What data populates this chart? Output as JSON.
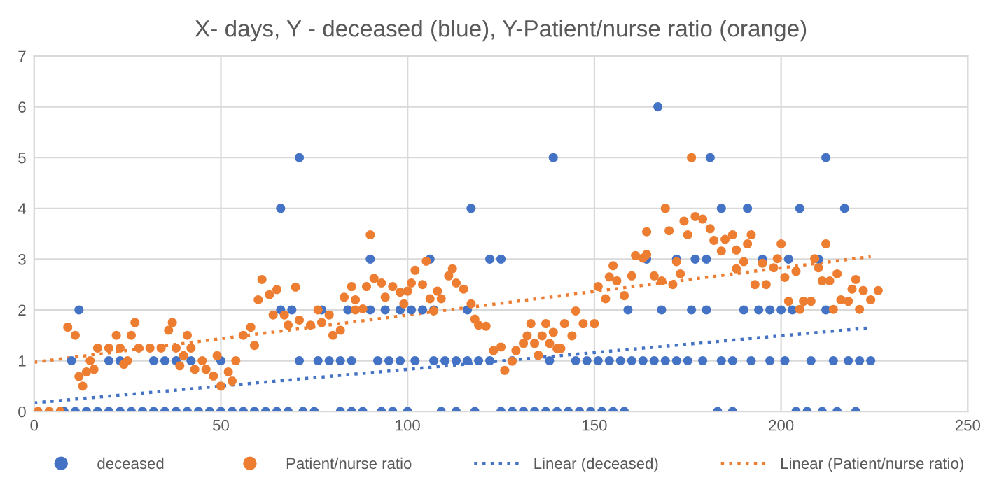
{
  "chart_data": {
    "type": "scatter",
    "title": "X- days, Y - deceased (blue), Y-Patient/nurse ratio (orange)",
    "xlim": [
      0,
      250
    ],
    "xticks": [
      0,
      50,
      100,
      150,
      200,
      250
    ],
    "ylim": [
      0,
      7
    ],
    "yticks": [
      0,
      1,
      2,
      3,
      4,
      5,
      6,
      7
    ],
    "grid": true,
    "legend": "bottom",
    "marker": "circle",
    "series": [
      {
        "name": "deceased",
        "color": "#4472c4",
        "x": [
          8,
          11,
          14,
          17,
          20,
          23,
          26,
          29,
          32,
          35,
          38,
          41,
          44,
          47,
          50,
          53,
          56,
          59,
          62,
          65,
          68,
          72,
          75,
          82,
          85,
          88,
          93,
          96,
          100,
          109,
          113,
          118,
          125,
          128,
          131,
          134,
          137,
          140,
          143,
          146,
          149,
          152,
          155,
          158,
          183,
          187,
          204,
          207,
          211,
          215,
          220,
          10,
          20,
          23,
          32,
          35,
          38,
          42,
          50,
          71,
          76,
          79,
          82,
          85,
          92,
          95,
          98,
          102,
          107,
          110,
          113,
          116,
          119,
          122,
          128,
          138,
          145,
          148,
          151,
          154,
          157,
          160,
          163,
          166,
          169,
          172,
          175,
          179,
          184,
          187,
          192,
          197,
          201,
          208,
          214,
          218,
          221,
          224,
          12,
          66,
          69,
          77,
          84,
          90,
          94,
          98,
          101,
          104,
          107,
          116,
          159,
          168,
          176,
          180,
          190,
          194,
          197,
          200,
          203,
          212,
          90,
          106,
          122,
          125,
          164,
          172,
          177,
          180,
          195,
          202,
          210,
          66,
          117,
          184,
          191,
          205,
          217,
          71,
          139,
          181,
          212,
          167
        ],
        "values": [
          0,
          0,
          0,
          0,
          0,
          0,
          0,
          0,
          0,
          0,
          0,
          0,
          0,
          0,
          0,
          0,
          0,
          0,
          0,
          0,
          0,
          0,
          0,
          0,
          0,
          0,
          0,
          0,
          0,
          0,
          0,
          0,
          0,
          0,
          0,
          0,
          0,
          0,
          0,
          0,
          0,
          0,
          0,
          0,
          0,
          0,
          0,
          0,
          0,
          0,
          0,
          1,
          1,
          1,
          1,
          1,
          1,
          1,
          1,
          1,
          1,
          1,
          1,
          1,
          1,
          1,
          1,
          1,
          1,
          1,
          1,
          1,
          1,
          1,
          1,
          1,
          1,
          1,
          1,
          1,
          1,
          1,
          1,
          1,
          1,
          1,
          1,
          1,
          1,
          1,
          1,
          1,
          1,
          1,
          1,
          1,
          1,
          1,
          2,
          2,
          2,
          2,
          2,
          2,
          2,
          2,
          2,
          2,
          2,
          2,
          2,
          2,
          2,
          2,
          2,
          2,
          2,
          2,
          2,
          2,
          3,
          3,
          3,
          3,
          3,
          3,
          3,
          3,
          3,
          3,
          3,
          4,
          4,
          4,
          4,
          4,
          4,
          5,
          5,
          5,
          5,
          6
        ]
      },
      {
        "name": "Patient/nurse ratio",
        "color": "#ed7d31",
        "x": [
          1,
          4,
          7,
          9,
          11,
          12,
          13,
          14,
          15,
          16,
          17,
          20,
          22,
          23,
          24,
          25,
          26,
          27,
          28,
          31,
          34,
          36,
          37,
          38,
          39,
          40,
          41,
          42,
          43,
          45,
          46,
          48,
          49,
          50,
          52,
          53,
          54,
          56,
          58,
          59,
          60,
          61,
          63,
          64,
          65,
          67,
          68,
          70,
          71,
          74,
          76,
          77,
          79,
          80,
          82,
          83,
          85,
          86,
          86,
          88,
          89,
          90,
          91,
          93,
          94,
          96,
          98,
          99,
          100,
          101,
          102,
          104,
          105,
          106,
          107,
          108,
          109,
          111,
          112,
          113,
          115,
          117,
          118,
          119,
          121,
          123,
          125,
          126,
          128,
          129,
          131,
          132,
          133,
          134,
          135,
          136,
          137,
          138,
          139,
          140,
          141,
          142,
          144,
          145,
          147,
          150,
          151,
          153,
          154,
          155,
          156,
          158,
          160,
          161,
          163,
          164,
          164,
          166,
          168,
          169,
          170,
          171,
          172,
          173,
          174,
          175,
          176,
          177,
          179,
          181,
          182,
          184,
          185,
          187,
          188,
          188,
          190,
          191,
          192,
          193,
          195,
          196,
          198,
          199,
          200,
          201,
          202,
          204,
          205,
          206,
          208,
          209,
          210,
          211,
          212,
          213,
          214,
          215,
          216,
          218,
          219,
          220,
          221,
          222,
          224,
          226
        ],
        "values": [
          0,
          0,
          0,
          1.66,
          1.5,
          0.69,
          0.5,
          0.78,
          1.0,
          0.83,
          1.25,
          1.25,
          1.5,
          1.25,
          0.93,
          1.0,
          1.5,
          1.75,
          1.25,
          1.25,
          1.25,
          1.6,
          1.75,
          1.25,
          0.9,
          1.1,
          1.5,
          1.25,
          0.83,
          1.0,
          0.83,
          0.7,
          1.1,
          0.5,
          0.78,
          0.6,
          1.0,
          1.5,
          1.66,
          1.3,
          2.2,
          2.6,
          2.3,
          1.9,
          2.4,
          1.9,
          1.7,
          2.45,
          1.8,
          1.7,
          2.0,
          1.75,
          1.9,
          1.5,
          1.6,
          2.25,
          2.46,
          2.0,
          2.2,
          2.02,
          2.46,
          3.48,
          2.62,
          2.53,
          2.25,
          2.46,
          2.35,
          2.12,
          2.37,
          2.53,
          2.78,
          2.5,
          2.96,
          2.22,
          1.98,
          2.37,
          2.22,
          2.67,
          2.81,
          2.53,
          2.41,
          2.12,
          1.82,
          1.7,
          1.68,
          1.2,
          1.27,
          0.81,
          0.99,
          1.2,
          1.34,
          1.49,
          1.73,
          1.34,
          1.11,
          1.49,
          1.73,
          1.34,
          1.56,
          1.24,
          1.24,
          1.73,
          1.49,
          1.98,
          1.73,
          1.73,
          2.46,
          2.22,
          2.65,
          2.87,
          2.57,
          2.28,
          2.67,
          3.07,
          3.02,
          3.54,
          3.09,
          2.67,
          2.57,
          4.0,
          3.56,
          2.5,
          2.95,
          2.71,
          3.75,
          3.48,
          5.0,
          3.84,
          3.79,
          3.6,
          3.37,
          3.16,
          3.39,
          3.48,
          2.81,
          3.18,
          2.95,
          3.3,
          3.48,
          2.5,
          2.92,
          2.5,
          2.83,
          3.01,
          3.3,
          2.64,
          2.17,
          2.76,
          2.01,
          2.17,
          2.17,
          3.01,
          2.83,
          2.57,
          3.3,
          2.57,
          2.01,
          2.71,
          2.2,
          2.17,
          2.41,
          2.6,
          2.01,
          2.38,
          2.2,
          2.38
        ]
      },
      {
        "name": "Linear (deceased)",
        "type": "line",
        "line_style": "dotted",
        "marker": "none",
        "color": "#4472c4",
        "x": [
          0,
          224
        ],
        "values": [
          0.17,
          1.65
        ]
      },
      {
        "name": "Linear (Patient/nurse ratio)",
        "type": "line",
        "line_style": "dotted",
        "marker": "none",
        "color": "#ed7d31",
        "x": [
          0,
          224
        ],
        "values": [
          0.97,
          3.05
        ]
      }
    ]
  }
}
